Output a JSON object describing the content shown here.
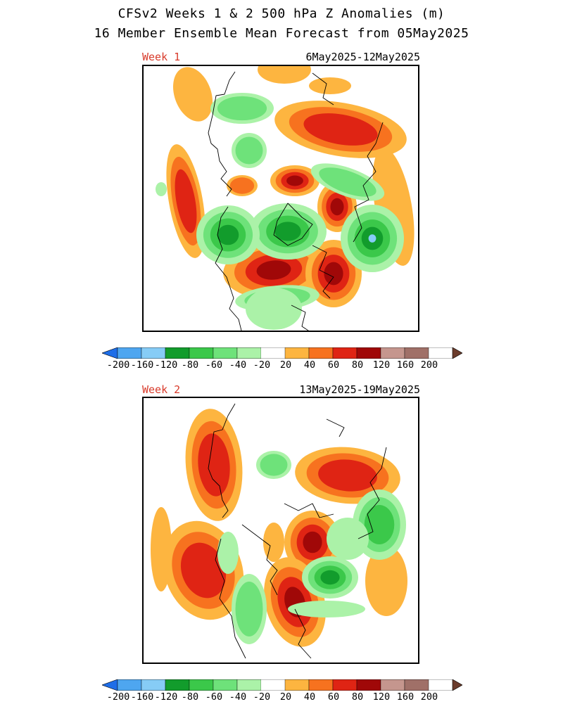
{
  "header": {
    "title_line1": "CFSv2 Weeks 1 & 2 500 hPa Z Anomalies (m)",
    "title_line2": "16 Member Ensemble Mean Forecast from 05May2025"
  },
  "panels": [
    {
      "week_label": "Week 1",
      "date_range": "6May2025-12May2025"
    },
    {
      "week_label": "Week 2",
      "date_range": "13May2025-19May2025"
    }
  ],
  "colorbar": {
    "labels": [
      "-200",
      "-160",
      "-120",
      "-80",
      "-60",
      "-40",
      "-20",
      "20",
      "40",
      "60",
      "80",
      "120",
      "160",
      "200"
    ],
    "colors": [
      "#1e6ee8",
      "#4ea6f0",
      "#86ccf6",
      "#129c2c",
      "#3bc84a",
      "#6ee27a",
      "#abf2a8",
      "#ffffff",
      "#fdb540",
      "#f7721f",
      "#df2414",
      "#a00808",
      "#c5968e",
      "#a07068",
      "#6b3c2c"
    ]
  },
  "levels": {
    "neg": [
      "#abf2a8",
      "#6ee27a",
      "#3bc84a",
      "#129c2c",
      "#86ccf6",
      "#4ea6f0"
    ],
    "pos": [
      "#fdb540",
      "#f7721f",
      "#df2414",
      "#a00808",
      "#c5968e"
    ]
  },
  "map_features": {
    "week1": [
      {
        "sign": "pos",
        "depth": 3,
        "note": "west pacific ridge"
      },
      {
        "sign": "pos",
        "depth": 4,
        "note": "north atlantic ridge"
      },
      {
        "sign": "pos",
        "depth": 4,
        "note": "western north america ridge"
      },
      {
        "sign": "pos",
        "depth": 4,
        "note": "arctic ridge"
      },
      {
        "sign": "pos",
        "depth": 2,
        "note": "north pacific ridge"
      },
      {
        "sign": "neg",
        "depth": 4,
        "note": "polar low"
      },
      {
        "sign": "neg",
        "depth": 4,
        "note": "europe low"
      },
      {
        "sign": "neg",
        "depth": 3,
        "note": "east asia low"
      },
      {
        "sign": "neg",
        "depth": 2,
        "note": "siberia low"
      }
    ],
    "week2": [
      {
        "sign": "pos",
        "depth": 3,
        "note": "east asia ridge"
      },
      {
        "sign": "pos",
        "depth": 3,
        "note": "west pacific ridge"
      },
      {
        "sign": "pos",
        "depth": 4,
        "note": "central north america ridge"
      },
      {
        "sign": "pos",
        "depth": 4,
        "note": "arctic ridge"
      },
      {
        "sign": "pos",
        "depth": 3,
        "note": "north atlantic ridge"
      },
      {
        "sign": "neg",
        "depth": 4,
        "note": "north atlantic low"
      },
      {
        "sign": "neg",
        "depth": 3,
        "note": "europe low"
      },
      {
        "sign": "neg",
        "depth": 2,
        "note": "east pacific low"
      }
    ]
  }
}
